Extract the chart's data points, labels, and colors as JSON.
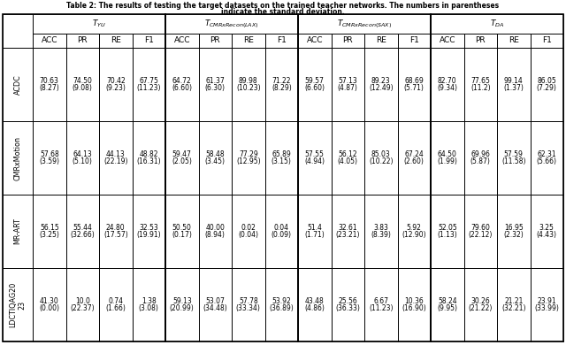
{
  "title_line1": "Table 2: The results of testing the target datasets on the trained teacher networks. The numbers in parentheses",
  "title_line2": "indicate the standard deviation.",
  "col_groups": [
    "$T_{YU}$",
    "$T_{CMRxRecon(LAX)}$",
    "$T_{CMRxRecon(SAX)}$",
    "$T_{DA}$"
  ],
  "sub_cols": [
    "ACC",
    "PR",
    "RE",
    "F1"
  ],
  "row_labels": [
    "ACDC",
    "CMRxMotion",
    "MR-ART",
    "LDCTIQAG20\n23"
  ],
  "data": [
    [
      [
        "70.63",
        "(8.27)"
      ],
      [
        "74.50",
        "(9.08)"
      ],
      [
        "70.42",
        "(9.23)"
      ],
      [
        "67.75",
        "(11.23)"
      ],
      [
        "64.72",
        "(6.60)"
      ],
      [
        "61.37",
        "(6.30)"
      ],
      [
        "89.98",
        "(10.23)"
      ],
      [
        "71.22",
        "(8.29)"
      ],
      [
        "59.57",
        "(6.60)"
      ],
      [
        "57.13",
        "(4.87)"
      ],
      [
        "89.23",
        "(12.49)"
      ],
      [
        "68.69",
        "(5.71)"
      ],
      [
        "82.70",
        "(9.34)"
      ],
      [
        "77.65",
        "(11.2)"
      ],
      [
        "99.14",
        "(1.37)"
      ],
      [
        "86.05",
        "(7.29)"
      ]
    ],
    [
      [
        "57.68",
        "(3.59)"
      ],
      [
        "64.13",
        "(5.10)"
      ],
      [
        "44.13",
        "(22.19)"
      ],
      [
        "48.82",
        "(16.31)"
      ],
      [
        "59.47",
        "(2.05)"
      ],
      [
        "58.48",
        "(3.45)"
      ],
      [
        "77.29",
        "(12.95)"
      ],
      [
        "65.89",
        "(3.15)"
      ],
      [
        "57.55",
        "(4.94)"
      ],
      [
        "56.12",
        "(4.05)"
      ],
      [
        "85.03",
        "(10.22)"
      ],
      [
        "67.24",
        "(2.60)"
      ],
      [
        "64.50",
        "(1.99)"
      ],
      [
        "69.96",
        "(5.87)"
      ],
      [
        "57.59",
        "(11.58)"
      ],
      [
        "62.31",
        "(5.66)"
      ]
    ],
    [
      [
        "56.15",
        "(3.25)"
      ],
      [
        "55.44",
        "(32.66)"
      ],
      [
        "24.80",
        "(17.57)"
      ],
      [
        "32.53",
        "(19.91)"
      ],
      [
        "50.50",
        "(0.17)"
      ],
      [
        "40.00",
        "(8.94)"
      ],
      [
        "0.02",
        "(0.04)"
      ],
      [
        "0.04",
        "(0.09)"
      ],
      [
        "51.4",
        "(1.71)"
      ],
      [
        "32.61",
        "(23.21)"
      ],
      [
        "3.83",
        "(8.39)"
      ],
      [
        "5.92",
        "(12.90)"
      ],
      [
        "52.05",
        "(1.13)"
      ],
      [
        "79.60",
        "(22.12)"
      ],
      [
        "16.95",
        "(2.32)"
      ],
      [
        "3.25",
        "(4.43)"
      ]
    ],
    [
      [
        "41.30",
        "(0.00)"
      ],
      [
        "10.0",
        "(22.37)"
      ],
      [
        "0.74",
        "(1.66)"
      ],
      [
        "1.38",
        "(3.08)"
      ],
      [
        "59.13",
        "(20.99)"
      ],
      [
        "53.07",
        "(34.48)"
      ],
      [
        "57.78",
        "(33.34)"
      ],
      [
        "53.92",
        "(36.89)"
      ],
      [
        "43.48",
        "(4.86)"
      ],
      [
        "25.56",
        "(36.33)"
      ],
      [
        "6.67",
        "(11.23)"
      ],
      [
        "10.36",
        "(16.90)"
      ],
      [
        "58.24",
        "(9.95)"
      ],
      [
        "30.26",
        "(21.22)"
      ],
      [
        "21.21",
        "(32.21)"
      ],
      [
        "23.91",
        "(33.99)"
      ]
    ]
  ],
  "title_fontsize": 5.5,
  "header_fontsize": 6.5,
  "subcol_fontsize": 6.5,
  "data_fontsize": 5.5,
  "rowlabel_fontsize": 5.8
}
